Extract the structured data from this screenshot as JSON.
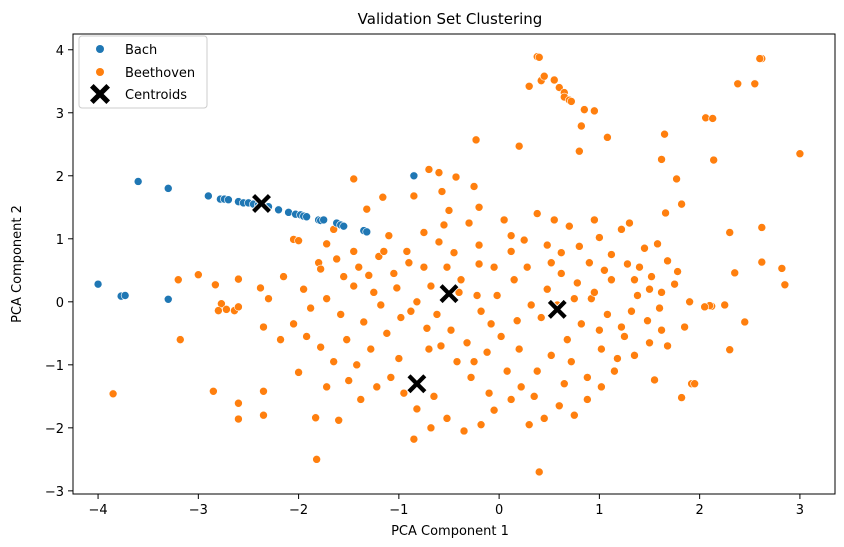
{
  "chart_data": {
    "type": "scatter",
    "title": "Validation Set Clustering",
    "xlabel": "PCA Component 1",
    "ylabel": "PCA Component 2",
    "xlim": [
      -4.25,
      3.35
    ],
    "ylim": [
      -3.05,
      4.25
    ],
    "xticks": [
      -4,
      -3,
      -2,
      -1,
      0,
      1,
      2,
      3
    ],
    "yticks": [
      -3,
      -2,
      -1,
      0,
      1,
      2,
      3,
      4
    ],
    "xtick_labels": [
      "−4",
      "−3",
      "−2",
      "−1",
      "0",
      "1",
      "2",
      "3"
    ],
    "ytick_labels": [
      "−3",
      "−2",
      "−1",
      "0",
      "1",
      "2",
      "3",
      "4"
    ],
    "grid": false,
    "legend_position": "top-left",
    "colors": {
      "Bach": "#1f77b4",
      "Beethoven": "#ff7f0e",
      "Centroids": "#000000"
    },
    "series": [
      {
        "name": "Bach",
        "marker": "circle",
        "points": [
          [
            -4.0,
            0.28
          ],
          [
            -3.77,
            0.09
          ],
          [
            -3.73,
            0.1
          ],
          [
            -3.6,
            1.91
          ],
          [
            -3.3,
            1.8
          ],
          [
            -3.3,
            0.04
          ],
          [
            -2.9,
            1.68
          ],
          [
            -2.78,
            1.63
          ],
          [
            -2.74,
            1.63
          ],
          [
            -2.7,
            1.62
          ],
          [
            -2.6,
            1.59
          ],
          [
            -2.55,
            1.57
          ],
          [
            -2.5,
            1.57
          ],
          [
            -2.45,
            1.55
          ],
          [
            -2.4,
            1.54
          ],
          [
            -2.3,
            1.51
          ],
          [
            -2.2,
            1.46
          ],
          [
            -2.1,
            1.42
          ],
          [
            -2.03,
            1.39
          ],
          [
            -1.98,
            1.38
          ],
          [
            -1.95,
            1.36
          ],
          [
            -1.92,
            1.35
          ],
          [
            -1.8,
            1.3
          ],
          [
            -1.78,
            1.29
          ],
          [
            -1.75,
            1.3
          ],
          [
            -1.62,
            1.25
          ],
          [
            -1.58,
            1.22
          ],
          [
            -1.55,
            1.2
          ],
          [
            -1.35,
            1.13
          ],
          [
            -1.32,
            1.11
          ],
          [
            -0.85,
            2.0
          ]
        ]
      },
      {
        "name": "Beethoven",
        "marker": "circle",
        "points": [
          [
            0.38,
            3.89
          ],
          [
            0.4,
            3.88
          ],
          [
            0.42,
            3.51
          ],
          [
            0.45,
            3.58
          ],
          [
            0.55,
            3.52
          ],
          [
            0.3,
            3.42
          ],
          [
            0.6,
            3.4
          ],
          [
            0.65,
            3.32
          ],
          [
            0.65,
            3.25
          ],
          [
            0.7,
            3.2
          ],
          [
            0.72,
            3.18
          ],
          [
            0.85,
            3.05
          ],
          [
            0.95,
            3.03
          ],
          [
            0.82,
            2.79
          ],
          [
            1.08,
            2.61
          ],
          [
            2.62,
            3.86
          ],
          [
            2.6,
            3.86
          ],
          [
            2.38,
            3.46
          ],
          [
            2.55,
            3.46
          ],
          [
            3.0,
            2.35
          ],
          [
            2.06,
            2.92
          ],
          [
            2.13,
            2.91
          ],
          [
            0.2,
            2.47
          ],
          [
            0.8,
            2.39
          ],
          [
            1.65,
            2.66
          ],
          [
            1.62,
            2.26
          ],
          [
            2.14,
            2.25
          ],
          [
            1.77,
            1.95
          ],
          [
            -0.23,
            2.57
          ],
          [
            -0.43,
            1.98
          ],
          [
            -0.7,
            2.1
          ],
          [
            -0.6,
            2.05
          ],
          [
            -1.45,
            1.95
          ],
          [
            -0.85,
            1.68
          ],
          [
            -0.25,
            1.83
          ],
          [
            -0.2,
            1.5
          ],
          [
            -0.57,
            1.75
          ],
          [
            -1.16,
            1.66
          ],
          [
            -1.32,
            1.47
          ],
          [
            -1.65,
            1.15
          ],
          [
            1.82,
            1.55
          ],
          [
            1.66,
            1.41
          ],
          [
            2.3,
            1.1
          ],
          [
            2.62,
            1.18
          ],
          [
            2.82,
            0.53
          ],
          [
            2.85,
            0.27
          ],
          [
            2.62,
            0.63
          ],
          [
            2.35,
            0.46
          ],
          [
            2.45,
            -0.32
          ],
          [
            2.3,
            -0.76
          ],
          [
            2.25,
            -0.05
          ],
          [
            2.12,
            -0.07
          ],
          [
            2.1,
            -0.06
          ],
          [
            2.05,
            -0.08
          ],
          [
            1.92,
            -1.3
          ],
          [
            1.82,
            -1.52
          ],
          [
            1.55,
            -1.24
          ],
          [
            1.68,
            -0.7
          ],
          [
            1.95,
            -1.3
          ],
          [
            -3.85,
            -1.46
          ],
          [
            -3.18,
            -0.6
          ],
          [
            -2.85,
            -1.42
          ],
          [
            -2.6,
            -1.61
          ],
          [
            -2.6,
            -1.86
          ],
          [
            -2.35,
            -1.42
          ],
          [
            -2.35,
            -1.8
          ],
          [
            -1.82,
            -2.5
          ],
          [
            -1.83,
            -1.84
          ],
          [
            -1.6,
            -1.88
          ],
          [
            -0.85,
            -2.18
          ],
          [
            0.4,
            -2.7
          ],
          [
            -3.2,
            0.35
          ],
          [
            -3.0,
            0.43
          ],
          [
            -2.83,
            0.27
          ],
          [
            -2.77,
            -0.03
          ],
          [
            -2.72,
            -0.12
          ],
          [
            -2.8,
            -0.14
          ],
          [
            -2.64,
            -0.14
          ],
          [
            -2.6,
            -0.08
          ],
          [
            -2.6,
            0.36
          ],
          [
            -2.38,
            0.22
          ],
          [
            -2.35,
            -0.4
          ],
          [
            -2.15,
            0.4
          ],
          [
            -2.05,
            0.99
          ],
          [
            -2.0,
            0.97
          ],
          [
            -1.8,
            0.62
          ],
          [
            -1.78,
            0.52
          ],
          [
            -1.72,
            0.92
          ],
          [
            -1.62,
            0.68
          ],
          [
            -1.55,
            0.4
          ],
          [
            -1.45,
            0.8
          ],
          [
            -1.4,
            0.55
          ],
          [
            -1.3,
            0.42
          ],
          [
            -1.2,
            0.72
          ],
          [
            -1.1,
            1.05
          ],
          [
            -0.9,
            0.62
          ],
          [
            -0.75,
            0.55
          ],
          [
            -0.6,
            0.95
          ],
          [
            -0.55,
            1.22
          ],
          [
            -0.45,
            0.78
          ],
          [
            -0.3,
            1.25
          ],
          [
            -0.2,
            0.6
          ],
          [
            0.05,
            1.3
          ],
          [
            0.12,
            1.05
          ],
          [
            0.25,
            0.98
          ],
          [
            0.38,
            1.4
          ],
          [
            0.48,
            0.9
          ],
          [
            0.55,
            1.3
          ],
          [
            0.62,
            0.78
          ],
          [
            0.7,
            1.2
          ],
          [
            0.8,
            0.88
          ],
          [
            0.9,
            0.62
          ],
          [
            1.0,
            1.02
          ],
          [
            1.12,
            0.75
          ],
          [
            1.22,
            1.15
          ],
          [
            1.3,
            1.25
          ],
          [
            1.4,
            0.55
          ],
          [
            1.5,
            0.2
          ],
          [
            1.6,
            -0.1
          ],
          [
            1.75,
            0.28
          ],
          [
            1.85,
            -0.4
          ],
          [
            1.62,
            -0.45
          ],
          [
            1.5,
            -0.65
          ],
          [
            1.35,
            -0.85
          ],
          [
            1.25,
            -0.55
          ],
          [
            1.15,
            -1.1
          ],
          [
            1.02,
            -1.35
          ],
          [
            0.88,
            -1.55
          ],
          [
            0.75,
            -1.8
          ],
          [
            0.6,
            -1.65
          ],
          [
            0.45,
            -1.85
          ],
          [
            0.3,
            -1.95
          ],
          [
            0.12,
            -1.55
          ],
          [
            -0.05,
            -1.72
          ],
          [
            -0.18,
            -1.95
          ],
          [
            -0.35,
            -2.05
          ],
          [
            -0.52,
            -1.85
          ],
          [
            -0.68,
            -2.0
          ],
          [
            -0.82,
            -1.7
          ],
          [
            -0.95,
            -1.45
          ],
          [
            -1.08,
            -1.2
          ],
          [
            -1.22,
            -1.35
          ],
          [
            -1.38,
            -1.55
          ],
          [
            -1.5,
            -1.25
          ],
          [
            -1.65,
            -0.95
          ],
          [
            -1.78,
            -0.72
          ],
          [
            -1.92,
            -0.55
          ],
          [
            -2.05,
            -0.35
          ],
          [
            -2.18,
            -0.6
          ],
          [
            -2.0,
            -1.12
          ],
          [
            -1.72,
            -1.35
          ],
          [
            -1.52,
            -0.6
          ],
          [
            -1.35,
            -0.32
          ],
          [
            -1.18,
            -0.05
          ],
          [
            -1.02,
            0.22
          ],
          [
            -0.88,
            -0.15
          ],
          [
            -0.72,
            -0.42
          ],
          [
            -0.58,
            -0.7
          ],
          [
            -0.42,
            -0.95
          ],
          [
            -0.28,
            -1.2
          ],
          [
            -0.12,
            -0.8
          ],
          [
            0.02,
            -0.55
          ],
          [
            0.18,
            -0.3
          ],
          [
            0.32,
            -0.05
          ],
          [
            0.48,
            0.2
          ],
          [
            0.62,
            0.45
          ],
          [
            0.78,
            0.3
          ],
          [
            0.92,
            0.05
          ],
          [
            1.08,
            -0.2
          ],
          [
            1.22,
            -0.4
          ],
          [
            1.38,
            0.1
          ],
          [
            1.52,
            0.4
          ],
          [
            1.68,
            0.65
          ],
          [
            1.45,
            0.85
          ],
          [
            1.28,
            0.6
          ],
          [
            1.12,
            0.35
          ],
          [
            0.95,
            0.15
          ],
          [
            0.82,
            -0.35
          ],
          [
            0.68,
            -0.6
          ],
          [
            0.52,
            -0.85
          ],
          [
            0.38,
            -1.1
          ],
          [
            0.22,
            -1.35
          ],
          [
            0.08,
            -1.1
          ],
          [
            -0.08,
            -0.35
          ],
          [
            -0.22,
            0.1
          ],
          [
            -0.38,
            0.35
          ],
          [
            -0.52,
            0.55
          ],
          [
            -0.68,
            0.25
          ],
          [
            -0.82,
            0.0
          ],
          [
            -0.98,
            -0.25
          ],
          [
            -1.12,
            -0.5
          ],
          [
            -1.28,
            -0.75
          ],
          [
            -1.42,
            -1.0
          ],
          [
            -1.58,
            -0.2
          ],
          [
            -1.72,
            0.05
          ],
          [
            -1.88,
            -0.1
          ],
          [
            -1.25,
            0.15
          ],
          [
            -1.05,
            0.45
          ],
          [
            -0.92,
            0.8
          ],
          [
            -0.75,
            1.1
          ],
          [
            -0.62,
            -0.2
          ],
          [
            -0.48,
            -0.45
          ],
          [
            -0.32,
            -0.65
          ],
          [
            -0.18,
            -0.15
          ],
          [
            -0.02,
            0.1
          ],
          [
            0.15,
            0.35
          ],
          [
            0.28,
            0.55
          ],
          [
            0.42,
            -0.25
          ],
          [
            0.58,
            -0.05
          ],
          [
            0.72,
            -0.95
          ],
          [
            0.88,
            -1.2
          ],
          [
            1.02,
            -0.75
          ],
          [
            1.18,
            -0.9
          ],
          [
            1.32,
            -0.15
          ],
          [
            1.48,
            -0.3
          ],
          [
            1.62,
            0.15
          ],
          [
            1.78,
            0.48
          ],
          [
            1.9,
            0.0
          ],
          [
            0.12,
            0.8
          ],
          [
            -0.05,
            0.55
          ],
          [
            -0.4,
            0.15
          ],
          [
            -0.1,
            -1.45
          ],
          [
            0.35,
            -1.5
          ],
          [
            0.65,
            -1.3
          ],
          [
            -0.65,
            -1.5
          ],
          [
            -1.0,
            -0.9
          ],
          [
            -1.15,
            0.8
          ],
          [
            -0.2,
            0.9
          ],
          [
            0.52,
            0.62
          ],
          [
            1.05,
            0.5
          ],
          [
            0.2,
            -0.75
          ],
          [
            -0.25,
            -0.95
          ],
          [
            0.75,
            0.05
          ],
          [
            -0.7,
            -0.75
          ],
          [
            1.35,
            0.35
          ],
          [
            1.0,
            -0.45
          ],
          [
            -1.45,
            0.25
          ],
          [
            -0.5,
            1.45
          ],
          [
            0.95,
            1.3
          ],
          [
            1.58,
            0.92
          ],
          [
            -1.95,
            0.2
          ],
          [
            -2.3,
            0.05
          ]
        ]
      },
      {
        "name": "Centroids",
        "marker": "X",
        "points": [
          [
            -2.37,
            1.56
          ],
          [
            -0.5,
            0.13
          ],
          [
            0.58,
            -0.12
          ],
          [
            -0.82,
            -1.3
          ]
        ]
      }
    ]
  }
}
